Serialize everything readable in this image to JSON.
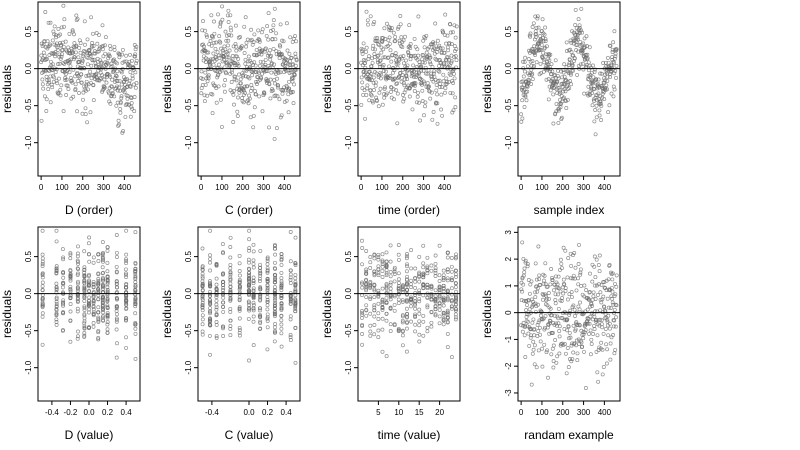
{
  "colors": {
    "points": "#6b6b6b",
    "axes": "#000000",
    "background": "#ffffff"
  },
  "chart_data": [
    {
      "type": "scatter",
      "xlabel": "D (order)",
      "ylabel": "residuals",
      "xlim": [
        -15,
        475
      ],
      "ylim": [
        -1.45,
        0.9
      ],
      "xticks": [
        {
          "v": 0,
          "label": "0"
        },
        {
          "v": 100,
          "label": "100"
        },
        {
          "v": 200,
          "label": "200"
        },
        {
          "v": 300,
          "label": "300"
        },
        {
          "v": 400,
          "label": "400"
        }
      ],
      "yticks": [
        {
          "v": 0.5,
          "label": "0.5"
        },
        {
          "v": 0,
          "label": "0.0"
        },
        {
          "v": -0.5,
          "label": "-0.5"
        },
        {
          "v": -1.0,
          "label": "-1.0"
        }
      ],
      "hline": 0,
      "n": 460,
      "pattern": "order-d"
    },
    {
      "type": "scatter",
      "xlabel": "C (order)",
      "ylabel": "residuals",
      "xlim": [
        -15,
        475
      ],
      "ylim": [
        -1.45,
        0.9
      ],
      "xticks": [
        {
          "v": 0,
          "label": "0"
        },
        {
          "v": 100,
          "label": "100"
        },
        {
          "v": 200,
          "label": "200"
        },
        {
          "v": 300,
          "label": "300"
        },
        {
          "v": 400,
          "label": "400"
        }
      ],
      "yticks": [
        {
          "v": 0.5,
          "label": "0.5"
        },
        {
          "v": 0,
          "label": "0.0"
        },
        {
          "v": -0.5,
          "label": "-0.5"
        },
        {
          "v": -1.0,
          "label": "-1.0"
        }
      ],
      "hline": 0,
      "n": 460,
      "pattern": "order-flat"
    },
    {
      "type": "scatter",
      "xlabel": "time (order)",
      "ylabel": "residuals",
      "xlim": [
        -15,
        475
      ],
      "ylim": [
        -1.45,
        0.9
      ],
      "xticks": [
        {
          "v": 0,
          "label": "0"
        },
        {
          "v": 100,
          "label": "100"
        },
        {
          "v": 200,
          "label": "200"
        },
        {
          "v": 300,
          "label": "300"
        },
        {
          "v": 400,
          "label": "400"
        }
      ],
      "yticks": [
        {
          "v": 0.5,
          "label": "0.5"
        },
        {
          "v": 0,
          "label": "0.0"
        },
        {
          "v": -0.5,
          "label": "-0.5"
        },
        {
          "v": -1.0,
          "label": "-1.0"
        }
      ],
      "hline": 0,
      "n": 460,
      "pattern": "order-flat"
    },
    {
      "type": "scatter",
      "xlabel": "sample index",
      "ylabel": "residuals",
      "xlim": [
        -15,
        475
      ],
      "ylim": [
        -1.45,
        0.9
      ],
      "xticks": [
        {
          "v": 0,
          "label": "0"
        },
        {
          "v": 100,
          "label": "100"
        },
        {
          "v": 200,
          "label": "200"
        },
        {
          "v": 300,
          "label": "300"
        },
        {
          "v": 400,
          "label": "400"
        }
      ],
      "yticks": [
        {
          "v": 0.5,
          "label": "0.5"
        },
        {
          "v": 0,
          "label": "0.0"
        },
        {
          "v": -0.5,
          "label": "-0.5"
        },
        {
          "v": -1.0,
          "label": "-1.0"
        }
      ],
      "hline": 0,
      "n": 460,
      "pattern": "index-wave"
    },
    {
      "type": "scatter",
      "xlabel": "D (value)",
      "ylabel": "residuals",
      "xlim": [
        -0.55,
        0.55
      ],
      "ylim": [
        -1.45,
        0.9
      ],
      "xticks": [
        {
          "v": -0.4,
          "label": "-0.4"
        },
        {
          "v": -0.2,
          "label": "-0.2"
        },
        {
          "v": 0,
          "label": "0.0"
        },
        {
          "v": 0.2,
          "label": "0.2"
        },
        {
          "v": 0.4,
          "label": "0.4"
        }
      ],
      "yticks": [
        {
          "v": 0.5,
          "label": "0.5"
        },
        {
          "v": 0,
          "label": "0.0"
        },
        {
          "v": -0.5,
          "label": "-0.5"
        },
        {
          "v": -1.0,
          "label": "-1.0"
        }
      ],
      "hline": 0,
      "n": 460,
      "pattern": "value-d",
      "x_levels": [
        -0.5,
        -0.35,
        -0.28,
        -0.2,
        -0.12,
        -0.05,
        0.0,
        0.05,
        0.1,
        0.15,
        0.2,
        0.3,
        0.4,
        0.5
      ]
    },
    {
      "type": "scatter",
      "xlabel": "C (value)",
      "ylabel": "residuals",
      "xlim": [
        -0.55,
        0.55
      ],
      "ylim": [
        -1.45,
        0.9
      ],
      "xticks": [
        {
          "v": -0.4,
          "label": "-0.4"
        },
        {
          "v": 0,
          "label": "0.0"
        },
        {
          "v": 0.2,
          "label": "0.2"
        },
        {
          "v": 0.4,
          "label": "0.4"
        }
      ],
      "yticks": [
        {
          "v": 0.5,
          "label": "0.5"
        },
        {
          "v": 0,
          "label": "0.0"
        },
        {
          "v": -0.5,
          "label": "-0.5"
        },
        {
          "v": -1.0,
          "label": "-1.0"
        }
      ],
      "hline": 0,
      "n": 460,
      "pattern": "value-c",
      "x_levels": [
        -0.5,
        -0.42,
        -0.35,
        -0.28,
        -0.2,
        -0.1,
        0.0,
        0.05,
        0.12,
        0.2,
        0.28,
        0.35,
        0.45,
        0.5
      ]
    },
    {
      "type": "scatter",
      "xlabel": "time (value)",
      "ylabel": "residuals",
      "xlim": [
        0,
        25
      ],
      "ylim": [
        -1.45,
        0.9
      ],
      "xticks": [
        {
          "v": 5,
          "label": "5"
        },
        {
          "v": 10,
          "label": "10"
        },
        {
          "v": 15,
          "label": "15"
        },
        {
          "v": 20,
          "label": "20"
        }
      ],
      "yticks": [
        {
          "v": 0.5,
          "label": "0.5"
        },
        {
          "v": 0,
          "label": "0.0"
        },
        {
          "v": -0.5,
          "label": "-0.5"
        },
        {
          "v": -1.0,
          "label": "-1.0"
        }
      ],
      "hline": 0,
      "n": 460,
      "pattern": "value-time",
      "x_levels": [
        1,
        2,
        3,
        4,
        5,
        6,
        7,
        8,
        9,
        10,
        11,
        12,
        13,
        14,
        15,
        16,
        17,
        18,
        19,
        20,
        21,
        22,
        23,
        24
      ]
    },
    {
      "type": "scatter",
      "xlabel": "randam example",
      "ylabel": "residuals",
      "xlim": [
        -15,
        475
      ],
      "ylim": [
        -3.3,
        3.2
      ],
      "xticks": [
        {
          "v": 0,
          "label": "0"
        },
        {
          "v": 100,
          "label": "100"
        },
        {
          "v": 200,
          "label": "200"
        },
        {
          "v": 300,
          "label": "300"
        },
        {
          "v": 400,
          "label": "400"
        }
      ],
      "yticks": [
        {
          "v": 3,
          "label": "3"
        },
        {
          "v": 2,
          "label": "2"
        },
        {
          "v": 1,
          "label": "1"
        },
        {
          "v": 0,
          "label": "0"
        },
        {
          "v": -1,
          "label": "-1"
        },
        {
          "v": -2,
          "label": "-2"
        },
        {
          "v": -3,
          "label": "-3"
        }
      ],
      "hline": 0,
      "n": 460,
      "pattern": "random-normal"
    }
  ]
}
